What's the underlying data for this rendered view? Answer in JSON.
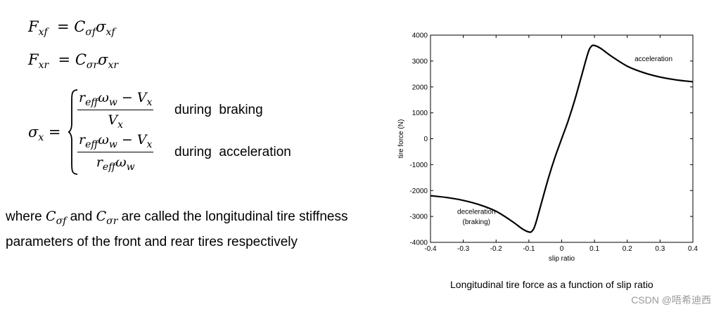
{
  "equations": {
    "fxf": {
      "lhs": "F",
      "lhs_sub": "xf",
      "rhs1": "C",
      "rhs1_sub": "σf",
      "rhs2": "σ",
      "rhs2_sub": "xf"
    },
    "fxr": {
      "lhs": "F",
      "lhs_sub": "xr",
      "rhs1": "C",
      "rhs1_sub": "σr",
      "rhs2": "σ",
      "rhs2_sub": "xr"
    },
    "sigma": {
      "lhs": "σ",
      "lhs_sub": "x",
      "case1_num": "r",
      "case1_num_sub": "eff",
      "case1_num_tail": "ω",
      "case1_num_tail_sub": "w",
      "case1_num_minus": " − V",
      "case1_num_minus_sub": "x",
      "case1_den": "V",
      "case1_den_sub": "x",
      "case1_cond": "during  braking",
      "case2_den": "r",
      "case2_den_sub": "eff",
      "case2_den_tail": "ω",
      "case2_den_tail_sub": "w",
      "case2_cond": "during  acceleration"
    }
  },
  "paragraph": {
    "t1": "where ",
    "sym1": "C",
    "sym1_sub": "σf",
    "t2": " and ",
    "sym2": "C",
    "sym2_sub": "σr",
    "t3": " are called the longitudinal tire stiffness parameters of the front and rear tires respectively"
  },
  "chart_data": {
    "type": "line",
    "xlabel": "slip ratio",
    "ylabel": "tire force (N)",
    "xlim": [
      -0.4,
      0.4
    ],
    "ylim": [
      -4000,
      4000
    ],
    "xticks": [
      "-0.4",
      "-0.3",
      "-0.2",
      "-0.1",
      "0",
      "0.1",
      "0.2",
      "0.3",
      "0.4"
    ],
    "yticks": [
      "4000",
      "3000",
      "2000",
      "1000",
      "0",
      "-1000",
      "-2000",
      "-3000",
      "-4000"
    ],
    "grid": false,
    "series": [
      {
        "x": [
          -0.4,
          -0.35,
          -0.3,
          -0.25,
          -0.2,
          -0.15,
          -0.12,
          -0.1,
          -0.09,
          -0.08,
          -0.06,
          -0.04,
          -0.02,
          0,
          0.02,
          0.04,
          0.06,
          0.08,
          0.09,
          0.1,
          0.12,
          0.15,
          0.2,
          0.25,
          0.3,
          0.35,
          0.4
        ],
        "y": [
          -2200,
          -2270,
          -2380,
          -2550,
          -2800,
          -3200,
          -3480,
          -3600,
          -3560,
          -3300,
          -2400,
          -1500,
          -700,
          0,
          700,
          1500,
          2400,
          3300,
          3560,
          3600,
          3480,
          3200,
          2800,
          2550,
          2380,
          2270,
          2200
        ]
      }
    ],
    "annotations": [
      {
        "text": "acceleration",
        "x": 0.28,
        "y": 3000
      },
      {
        "text": "deceleration",
        "x": -0.26,
        "y": -2900
      },
      {
        "text": "(braking)",
        "x": -0.26,
        "y": -3300
      }
    ]
  },
  "caption": "Longitudinal tire force as a function of slip ratio",
  "watermark": "CSDN @唔希迪西"
}
